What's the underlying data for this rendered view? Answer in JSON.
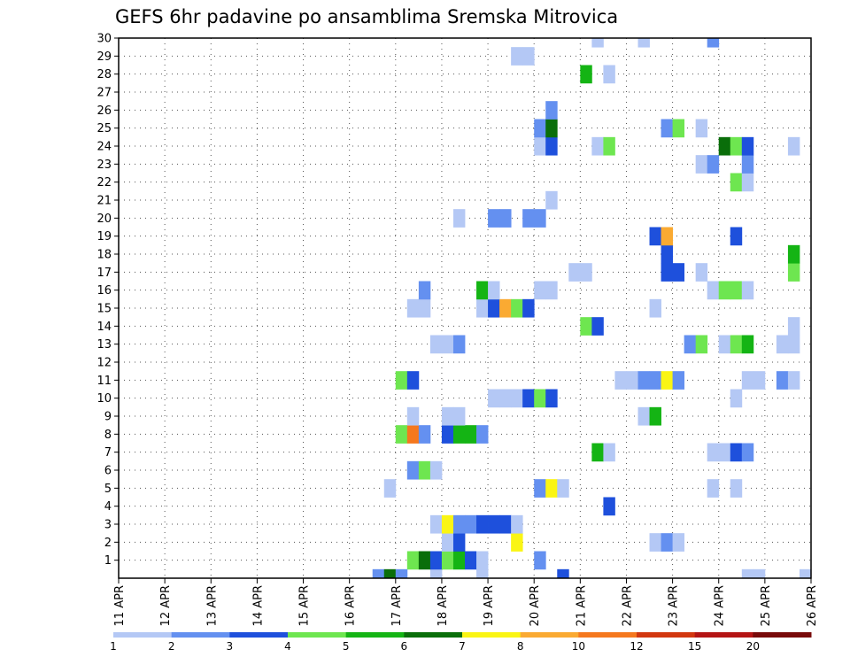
{
  "chart_data": {
    "type": "heatmap",
    "title": "GEFS 6hr padavine po ansamblima Sremska Mitrovica",
    "y_labels": [
      "1",
      "2",
      "3",
      "4",
      "5",
      "6",
      "7",
      "8",
      "9",
      "10",
      "11",
      "12",
      "13",
      "14",
      "15",
      "16",
      "17",
      "18",
      "19",
      "20",
      "21",
      "22",
      "23",
      "24",
      "25",
      "26",
      "27",
      "28",
      "29",
      "30"
    ],
    "x_labels": [
      "11 APR",
      "12 APR",
      "13 APR",
      "14 APR",
      "15 APR",
      "16 APR",
      "17 APR",
      "18 APR",
      "19 APR",
      "20 APR",
      "21 APR",
      "22 APR",
      "23 APR",
      "24 APR",
      "25 APR",
      "26 APR"
    ],
    "x_range": [
      0,
      60
    ],
    "y_range": [
      0,
      30
    ],
    "grid": true,
    "colorbar": {
      "ticks": [
        "1",
        "2",
        "3",
        "4",
        "5",
        "6",
        "7",
        "8",
        "10",
        "12",
        "15",
        "20"
      ],
      "colors": [
        "#b4c8f5",
        "#6490f0",
        "#1e50dc",
        "#6ee650",
        "#14b414",
        "#0a6e0a",
        "#faf514",
        "#faaa32",
        "#f5781e",
        "#d2370f",
        "#b41414",
        "#780a0a"
      ]
    },
    "cells": [
      [
        22,
        0,
        2
      ],
      [
        23,
        0,
        6
      ],
      [
        24,
        0,
        2
      ],
      [
        27,
        0,
        1
      ],
      [
        31,
        0,
        1
      ],
      [
        38,
        0,
        3
      ],
      [
        54,
        0,
        1
      ],
      [
        55,
        0,
        1
      ],
      [
        59,
        0,
        1
      ],
      [
        25,
        1,
        4
      ],
      [
        26,
        1,
        6
      ],
      [
        27,
        1,
        3
      ],
      [
        28,
        1,
        4
      ],
      [
        29,
        1,
        5
      ],
      [
        30,
        1,
        3
      ],
      [
        31,
        1,
        1
      ],
      [
        36,
        1,
        2
      ],
      [
        28,
        2,
        1
      ],
      [
        29,
        2,
        3
      ],
      [
        34,
        2,
        7
      ],
      [
        46,
        2,
        1
      ],
      [
        47,
        2,
        2
      ],
      [
        48,
        2,
        1
      ],
      [
        27,
        3,
        1
      ],
      [
        28,
        3,
        7
      ],
      [
        29,
        3,
        2
      ],
      [
        30,
        3,
        2
      ],
      [
        31,
        3,
        3
      ],
      [
        32,
        3,
        3
      ],
      [
        33,
        3,
        3
      ],
      [
        34,
        3,
        1
      ],
      [
        42,
        4,
        3
      ],
      [
        23,
        5,
        1
      ],
      [
        36,
        5,
        2
      ],
      [
        37,
        5,
        7
      ],
      [
        38,
        5,
        1
      ],
      [
        51,
        5,
        1
      ],
      [
        53,
        5,
        1
      ],
      [
        25,
        6,
        2
      ],
      [
        26,
        6,
        4
      ],
      [
        27,
        6,
        1
      ],
      [
        41,
        7,
        5
      ],
      [
        42,
        7,
        1
      ],
      [
        51,
        7,
        1
      ],
      [
        52,
        7,
        1
      ],
      [
        53,
        7,
        3
      ],
      [
        54,
        7,
        2
      ],
      [
        24,
        8,
        4
      ],
      [
        25,
        8,
        9
      ],
      [
        26,
        8,
        2
      ],
      [
        28,
        8,
        3
      ],
      [
        29,
        8,
        5
      ],
      [
        30,
        8,
        5
      ],
      [
        31,
        8,
        2
      ],
      [
        25,
        9,
        1
      ],
      [
        28,
        9,
        1
      ],
      [
        29,
        9,
        1
      ],
      [
        45,
        9,
        1
      ],
      [
        46,
        9,
        5
      ],
      [
        32,
        10,
        1
      ],
      [
        33,
        10,
        1
      ],
      [
        34,
        10,
        1
      ],
      [
        35,
        10,
        3
      ],
      [
        36,
        10,
        4
      ],
      [
        37,
        10,
        3
      ],
      [
        53,
        10,
        1
      ],
      [
        24,
        11,
        4
      ],
      [
        25,
        11,
        3
      ],
      [
        43,
        11,
        1
      ],
      [
        44,
        11,
        1
      ],
      [
        45,
        11,
        2
      ],
      [
        46,
        11,
        2
      ],
      [
        47,
        11,
        7
      ],
      [
        48,
        11,
        2
      ],
      [
        54,
        11,
        1
      ],
      [
        55,
        11,
        1
      ],
      [
        57,
        11,
        2
      ],
      [
        58,
        11,
        1
      ],
      [
        27,
        13,
        1
      ],
      [
        28,
        13,
        1
      ],
      [
        29,
        13,
        2
      ],
      [
        49,
        13,
        2
      ],
      [
        50,
        13,
        4
      ],
      [
        52,
        13,
        1
      ],
      [
        53,
        13,
        4
      ],
      [
        54,
        13,
        5
      ],
      [
        57,
        13,
        1
      ],
      [
        58,
        13,
        1
      ],
      [
        40,
        14,
        4
      ],
      [
        41,
        14,
        3
      ],
      [
        58,
        14,
        1
      ],
      [
        25,
        15,
        1
      ],
      [
        26,
        15,
        1
      ],
      [
        31,
        15,
        1
      ],
      [
        32,
        15,
        3
      ],
      [
        33,
        15,
        8
      ],
      [
        34,
        15,
        4
      ],
      [
        35,
        15,
        3
      ],
      [
        46,
        15,
        1
      ],
      [
        26,
        16,
        2
      ],
      [
        31,
        16,
        5
      ],
      [
        32,
        16,
        1
      ],
      [
        36,
        16,
        1
      ],
      [
        37,
        16,
        1
      ],
      [
        51,
        16,
        1
      ],
      [
        52,
        16,
        4
      ],
      [
        53,
        16,
        4
      ],
      [
        54,
        16,
        1
      ],
      [
        39,
        17,
        1
      ],
      [
        40,
        17,
        1
      ],
      [
        47,
        17,
        3
      ],
      [
        48,
        17,
        3
      ],
      [
        50,
        17,
        1
      ],
      [
        58,
        17,
        4
      ],
      [
        47,
        18,
        3
      ],
      [
        58,
        18,
        5
      ],
      [
        46,
        19,
        3
      ],
      [
        47,
        19,
        8
      ],
      [
        53,
        19,
        3
      ],
      [
        29,
        20,
        1
      ],
      [
        32,
        20,
        2
      ],
      [
        33,
        20,
        2
      ],
      [
        35,
        20,
        2
      ],
      [
        36,
        20,
        2
      ],
      [
        37,
        21,
        1
      ],
      [
        53,
        22,
        4
      ],
      [
        54,
        22,
        1
      ],
      [
        50,
        23,
        1
      ],
      [
        51,
        23,
        2
      ],
      [
        54,
        23,
        2
      ],
      [
        36,
        24,
        1
      ],
      [
        37,
        24,
        3
      ],
      [
        41,
        24,
        1
      ],
      [
        42,
        24,
        4
      ],
      [
        52,
        24,
        6
      ],
      [
        53,
        24,
        4
      ],
      [
        54,
        24,
        3
      ],
      [
        58,
        24,
        1
      ],
      [
        36,
        25,
        2
      ],
      [
        37,
        25,
        6
      ],
      [
        47,
        25,
        2
      ],
      [
        48,
        25,
        4
      ],
      [
        50,
        25,
        1
      ],
      [
        37,
        26,
        2
      ],
      [
        40,
        28,
        5
      ],
      [
        42,
        28,
        1
      ],
      [
        34,
        29,
        1
      ],
      [
        35,
        29,
        1
      ],
      [
        41,
        30,
        1
      ],
      [
        45,
        30,
        1
      ],
      [
        51,
        30,
        2
      ]
    ]
  }
}
